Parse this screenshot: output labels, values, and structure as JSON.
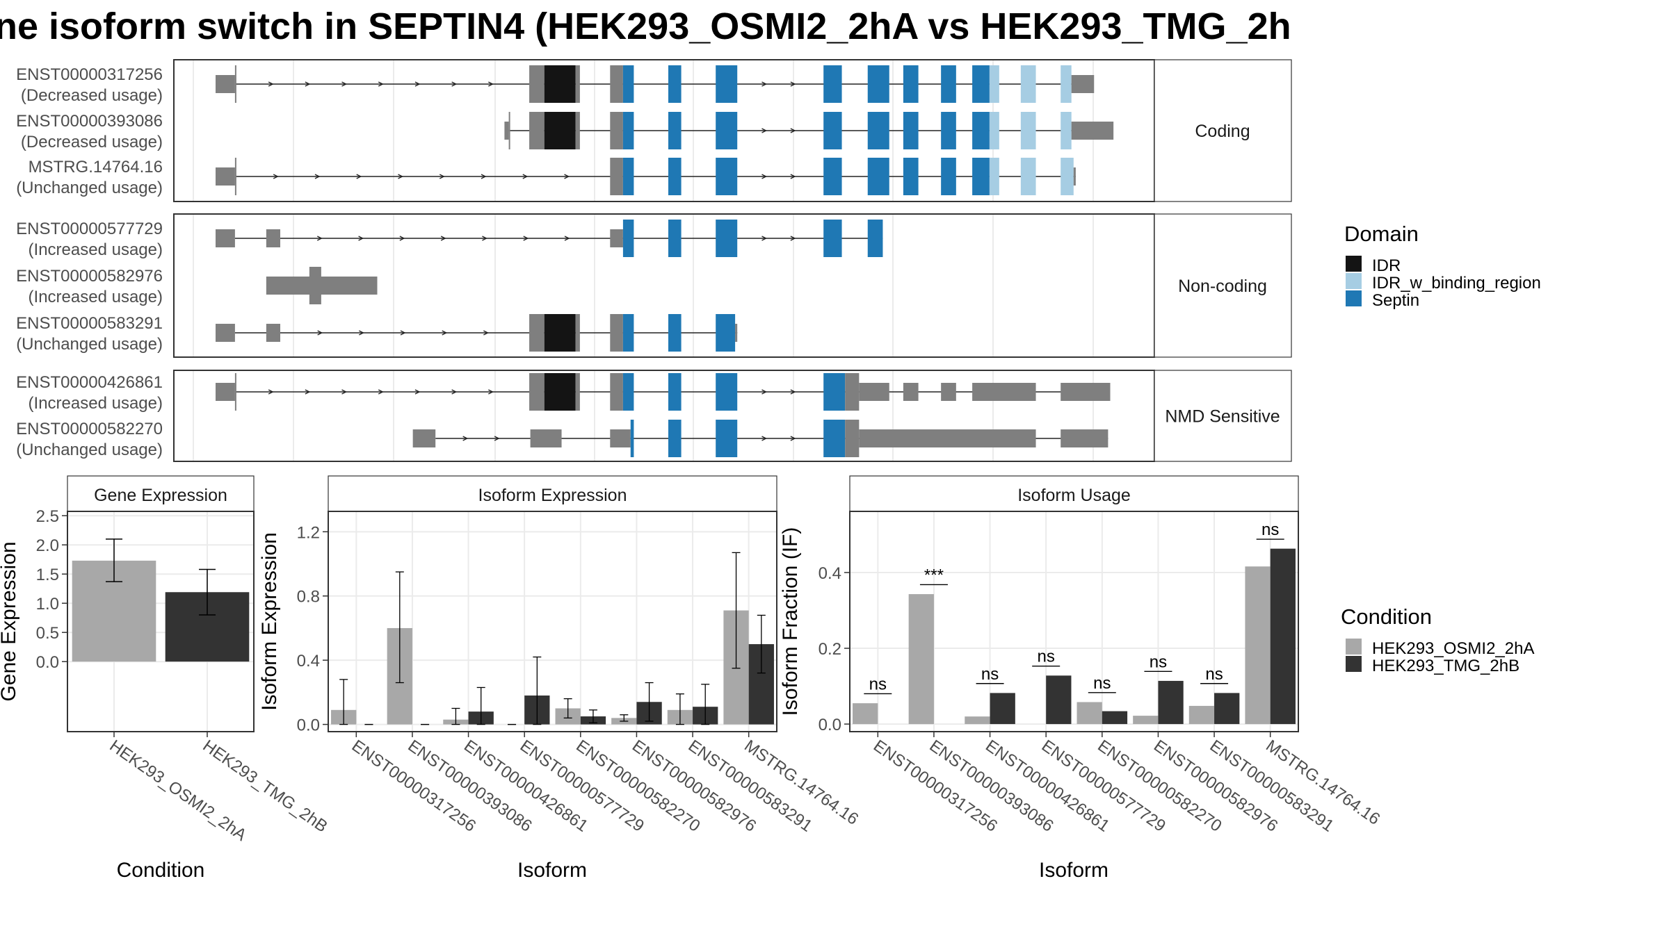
{
  "title": "ne isoform switch in SEPTIN4 (HEK293_OSMI2_2hA vs HEK293_TMG_2h",
  "colors": {
    "intron": "#222222",
    "utr": "#7f7f7f",
    "IDR": "#141414",
    "IDR_w_binding_region": "#a6cde3",
    "Septin": "#1f78b4",
    "cond_A": "#a8a8a8",
    "cond_B": "#333333"
  },
  "transcript_groups": [
    {
      "strip": "Coding",
      "transcripts": [
        {
          "id": "ENST00000317256",
          "usage": "(Decreased usage)",
          "intron": [
            218,
            1008
          ],
          "exons": [
            {
              "s": 200,
              "e": 218,
              "t": "utr"
            },
            {
              "s": 218,
              "e": 219,
              "t": "cds"
            },
            {
              "s": 491,
              "e": 505,
              "t": "cds"
            },
            {
              "s": 505,
              "e": 534,
              "t": "IDR"
            },
            {
              "s": 534,
              "e": 538,
              "t": "cds"
            },
            {
              "s": 566,
              "e": 578,
              "t": "cds"
            },
            {
              "s": 578,
              "e": 588,
              "t": "Septin"
            },
            {
              "s": 620,
              "e": 632,
              "t": "Septin"
            },
            {
              "s": 664,
              "e": 684,
              "t": "Septin"
            },
            {
              "s": 764,
              "e": 781,
              "t": "Septin"
            },
            {
              "s": 805,
              "e": 825,
              "t": "Septin"
            },
            {
              "s": 838,
              "e": 852,
              "t": "Septin"
            },
            {
              "s": 873,
              "e": 887,
              "t": "Septin"
            },
            {
              "s": 902,
              "e": 918,
              "t": "Septin"
            },
            {
              "s": 918,
              "e": 927,
              "t": "IDR_w_binding_region"
            },
            {
              "s": 947,
              "e": 961,
              "t": "IDR_w_binding_region"
            },
            {
              "s": 984,
              "e": 994,
              "t": "IDR_w_binding_region"
            },
            {
              "s": 994,
              "e": 1015,
              "t": "utr"
            }
          ]
        },
        {
          "id": "ENST00000393086",
          "usage": "(Decreased usage)",
          "intron": [
            472,
            1008
          ],
          "exons": [
            {
              "s": 468,
              "e": 472,
              "t": "utr"
            },
            {
              "s": 472,
              "e": 473,
              "t": "cds"
            },
            {
              "s": 491,
              "e": 505,
              "t": "cds"
            },
            {
              "s": 505,
              "e": 534,
              "t": "IDR"
            },
            {
              "s": 534,
              "e": 538,
              "t": "cds"
            },
            {
              "s": 566,
              "e": 578,
              "t": "cds"
            },
            {
              "s": 578,
              "e": 588,
              "t": "Septin"
            },
            {
              "s": 620,
              "e": 632,
              "t": "Septin"
            },
            {
              "s": 664,
              "e": 684,
              "t": "Septin"
            },
            {
              "s": 764,
              "e": 781,
              "t": "Septin"
            },
            {
              "s": 805,
              "e": 825,
              "t": "Septin"
            },
            {
              "s": 838,
              "e": 852,
              "t": "Septin"
            },
            {
              "s": 873,
              "e": 887,
              "t": "Septin"
            },
            {
              "s": 902,
              "e": 918,
              "t": "Septin"
            },
            {
              "s": 918,
              "e": 927,
              "t": "IDR_w_binding_region"
            },
            {
              "s": 947,
              "e": 961,
              "t": "IDR_w_binding_region"
            },
            {
              "s": 984,
              "e": 994,
              "t": "IDR_w_binding_region"
            },
            {
              "s": 994,
              "e": 1033,
              "t": "utr"
            }
          ]
        },
        {
          "id": "MSTRG.14764.16",
          "usage": "(Unchanged usage)",
          "intron": [
            218,
            998
          ],
          "exons": [
            {
              "s": 200,
              "e": 218,
              "t": "utr"
            },
            {
              "s": 218,
              "e": 219,
              "t": "cds"
            },
            {
              "s": 566,
              "e": 578,
              "t": "cds"
            },
            {
              "s": 578,
              "e": 588,
              "t": "Septin"
            },
            {
              "s": 620,
              "e": 632,
              "t": "Septin"
            },
            {
              "s": 664,
              "e": 684,
              "t": "Septin"
            },
            {
              "s": 764,
              "e": 781,
              "t": "Septin"
            },
            {
              "s": 805,
              "e": 825,
              "t": "Septin"
            },
            {
              "s": 838,
              "e": 852,
              "t": "Septin"
            },
            {
              "s": 873,
              "e": 887,
              "t": "Septin"
            },
            {
              "s": 902,
              "e": 918,
              "t": "Septin"
            },
            {
              "s": 918,
              "e": 927,
              "t": "IDR_w_binding_region"
            },
            {
              "s": 947,
              "e": 961,
              "t": "IDR_w_binding_region"
            },
            {
              "s": 984,
              "e": 996,
              "t": "IDR_w_binding_region"
            },
            {
              "s": 996,
              "e": 998,
              "t": "utr"
            }
          ]
        }
      ]
    },
    {
      "strip": "Non-coding",
      "transcripts": [
        {
          "id": "ENST00000577729",
          "usage": "(Increased usage)",
          "intron": [
            218,
            819
          ],
          "exons": [
            {
              "s": 200,
              "e": 218,
              "t": "utr"
            },
            {
              "s": 247,
              "e": 260,
              "t": "utr"
            },
            {
              "s": 566,
              "e": 578,
              "t": "utr"
            },
            {
              "s": 578,
              "e": 588,
              "t": "Septin"
            },
            {
              "s": 620,
              "e": 632,
              "t": "Septin"
            },
            {
              "s": 664,
              "e": 684,
              "t": "Septin"
            },
            {
              "s": 764,
              "e": 781,
              "t": "Septin"
            },
            {
              "s": 805,
              "e": 819,
              "t": "Septin"
            }
          ]
        },
        {
          "id": "ENST00000582976",
          "usage": "(Increased usage)",
          "intron": null,
          "exons": [
            {
              "s": 247,
              "e": 350,
              "t": "utr"
            },
            {
              "s": 287,
              "e": 298,
              "t": "cds"
            }
          ]
        },
        {
          "id": "ENST00000583291",
          "usage": "(Unchanged usage)",
          "intron": [
            218,
            684
          ],
          "exons": [
            {
              "s": 200,
              "e": 218,
              "t": "utr"
            },
            {
              "s": 247,
              "e": 260,
              "t": "utr"
            },
            {
              "s": 491,
              "e": 505,
              "t": "cds"
            },
            {
              "s": 505,
              "e": 534,
              "t": "IDR"
            },
            {
              "s": 534,
              "e": 538,
              "t": "cds"
            },
            {
              "s": 566,
              "e": 578,
              "t": "cds"
            },
            {
              "s": 578,
              "e": 588,
              "t": "Septin"
            },
            {
              "s": 620,
              "e": 632,
              "t": "Septin"
            },
            {
              "s": 664,
              "e": 682,
              "t": "Septin"
            },
            {
              "s": 682,
              "e": 684,
              "t": "utr"
            }
          ]
        }
      ]
    },
    {
      "strip": "NMD Sensitive",
      "transcripts": [
        {
          "id": "ENST00000426861",
          "usage": "(Increased usage)",
          "intron": [
            218,
            1030
          ],
          "exons": [
            {
              "s": 200,
              "e": 218,
              "t": "utr"
            },
            {
              "s": 218,
              "e": 219,
              "t": "cds"
            },
            {
              "s": 491,
              "e": 505,
              "t": "cds"
            },
            {
              "s": 505,
              "e": 534,
              "t": "IDR"
            },
            {
              "s": 534,
              "e": 538,
              "t": "cds"
            },
            {
              "s": 566,
              "e": 578,
              "t": "cds"
            },
            {
              "s": 578,
              "e": 588,
              "t": "Septin"
            },
            {
              "s": 620,
              "e": 632,
              "t": "Septin"
            },
            {
              "s": 664,
              "e": 684,
              "t": "Septin"
            },
            {
              "s": 764,
              "e": 784,
              "t": "Septin"
            },
            {
              "s": 784,
              "e": 797,
              "t": "cds"
            },
            {
              "s": 797,
              "e": 825,
              "t": "utr"
            },
            {
              "s": 838,
              "e": 852,
              "t": "utr"
            },
            {
              "s": 873,
              "e": 887,
              "t": "utr"
            },
            {
              "s": 902,
              "e": 961,
              "t": "utr"
            },
            {
              "s": 984,
              "e": 1030,
              "t": "utr"
            }
          ]
        },
        {
          "id": "ENST00000582270",
          "usage": "(Unchanged usage)",
          "intron": [
            404,
            1028
          ],
          "exons": [
            {
              "s": 383,
              "e": 404,
              "t": "utr"
            },
            {
              "s": 492,
              "e": 521,
              "t": "utr"
            },
            {
              "s": 566,
              "e": 585,
              "t": "utr"
            },
            {
              "s": 585,
              "e": 588,
              "t": "Septin"
            },
            {
              "s": 620,
              "e": 632,
              "t": "Septin"
            },
            {
              "s": 664,
              "e": 684,
              "t": "Septin"
            },
            {
              "s": 764,
              "e": 784,
              "t": "Septin"
            },
            {
              "s": 784,
              "e": 797,
              "t": "cds"
            },
            {
              "s": 797,
              "e": 961,
              "t": "utr"
            },
            {
              "s": 984,
              "e": 1028,
              "t": "utr"
            }
          ]
        }
      ]
    }
  ],
  "legend_domain": {
    "title": "Domain",
    "items": [
      {
        "label": "IDR",
        "color": "#141414"
      },
      {
        "label": "IDR_w_binding_region",
        "color": "#a6cde3"
      },
      {
        "label": "Septin",
        "color": "#1f78b4"
      }
    ]
  },
  "legend_condition": {
    "title": "Condition",
    "items": [
      {
        "label": "HEK293_OSMI2_2hA",
        "color": "#a8a8a8"
      },
      {
        "label": "HEK293_TMG_2hB",
        "color": "#333333"
      }
    ]
  },
  "chart_data": [
    {
      "type": "bar",
      "strip": "Gene Expression",
      "ylabel": "Gene Expression",
      "xlabel": "Condition",
      "ylim": [
        0,
        2.5
      ],
      "yticks": [
        0.0,
        0.5,
        1.0,
        1.5,
        2.0,
        2.5
      ],
      "ytick_labels": [
        "0.0",
        "0.5",
        "1.0",
        "1.5",
        "2.0",
        "2.5"
      ],
      "categories": [
        "HEK293_OSMI2_2hA",
        "HEK293_TMG_2hB"
      ],
      "values": [
        1.73,
        1.19
      ],
      "err_low": [
        1.37,
        0.8
      ],
      "err_high": [
        2.1,
        1.58
      ]
    },
    {
      "type": "bar",
      "strip": "Isoform Expression",
      "ylabel": "Isoform Expression",
      "xlabel": "Isoform",
      "ylim": [
        0,
        1.3
      ],
      "yticks": [
        0.0,
        0.4,
        0.8,
        1.2
      ],
      "ytick_labels": [
        "0.0",
        "0.4",
        "0.8",
        "1.2"
      ],
      "categories": [
        "ENST00000317256",
        "ENST00000393086",
        "ENST00000426861",
        "ENST00000577729",
        "ENST00000582270",
        "ENST00000582976",
        "ENST00000583291",
        "MSTRG.14764.16"
      ],
      "series": [
        {
          "name": "HEK293_OSMI2_2hA",
          "values": [
            0.09,
            0.6,
            0.03,
            0.0,
            0.1,
            0.04,
            0.09,
            0.71
          ],
          "err_low": [
            0.0,
            0.26,
            0.0,
            0.0,
            0.04,
            0.02,
            0.0,
            0.35
          ],
          "err_high": [
            0.28,
            0.95,
            0.1,
            0.0,
            0.16,
            0.06,
            0.19,
            1.07
          ]
        },
        {
          "name": "HEK293_TMG_2hB",
          "values": [
            0.0,
            0.0,
            0.08,
            0.18,
            0.05,
            0.14,
            0.11,
            0.5
          ],
          "err_low": [
            0.0,
            0.0,
            0.0,
            0.0,
            0.01,
            0.02,
            0.0,
            0.32
          ],
          "err_high": [
            0.0,
            0.0,
            0.23,
            0.42,
            0.09,
            0.26,
            0.25,
            0.68
          ]
        }
      ]
    },
    {
      "type": "bar",
      "strip": "Isoform Usage",
      "ylabel": "Isoform Fraction (IF)",
      "xlabel": "Isoform",
      "ylim": [
        0,
        0.55
      ],
      "yticks": [
        0.0,
        0.2,
        0.4
      ],
      "ytick_labels": [
        "0.0",
        "0.2",
        "0.4"
      ],
      "categories": [
        "ENST00000317256",
        "ENST00000393086",
        "ENST00000426861",
        "ENST00000577729",
        "ENST00000582270",
        "ENST00000582976",
        "ENST00000583291",
        "MSTRG.14764.16"
      ],
      "series": [
        {
          "name": "HEK293_OSMI2_2hA",
          "values": [
            0.055,
            0.343,
            0.02,
            0.0,
            0.058,
            0.022,
            0.048,
            0.416
          ]
        },
        {
          "name": "HEK293_TMG_2hB",
          "values": [
            0.0,
            0.0,
            0.082,
            0.128,
            0.034,
            0.114,
            0.082,
            0.463
          ]
        }
      ],
      "significance": [
        {
          "label": "ns",
          "y": 0.08
        },
        {
          "label": "***",
          "y": 0.368
        },
        {
          "label": "ns",
          "y": 0.107
        },
        {
          "label": "ns",
          "y": 0.153
        },
        {
          "label": "ns",
          "y": 0.083
        },
        {
          "label": "ns",
          "y": 0.139
        },
        {
          "label": "ns",
          "y": 0.107
        },
        {
          "label": "ns",
          "y": 0.488
        }
      ]
    }
  ]
}
